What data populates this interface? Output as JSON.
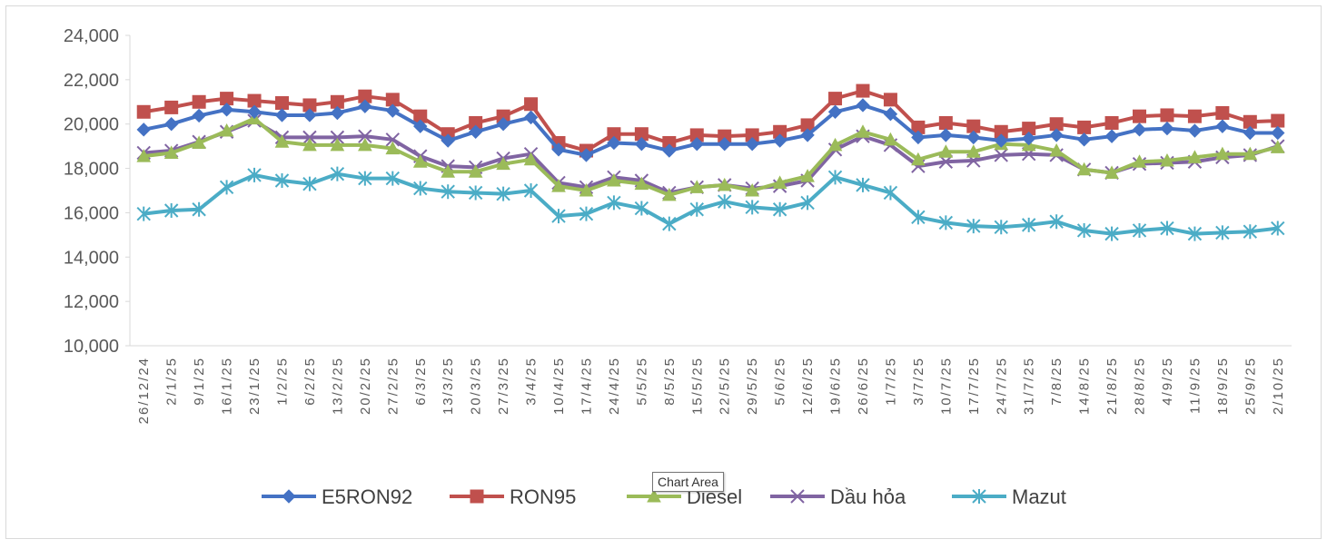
{
  "chart_data": {
    "type": "line",
    "title": "",
    "xlabel": "",
    "ylabel": "",
    "ylim": [
      10000,
      24000
    ],
    "yticks": [
      10000,
      12000,
      14000,
      16000,
      18000,
      20000,
      22000,
      24000
    ],
    "ytick_labels": [
      "10,000",
      "12,000",
      "14,000",
      "16,000",
      "18,000",
      "20,000",
      "22,000",
      "24,000"
    ],
    "grid": false,
    "legend_position": "bottom",
    "x": [
      "26/12/24",
      "2/1/25",
      "9/1/25",
      "16/1/25",
      "23/1/25",
      "1/2/25",
      "6/2/25",
      "13/2/25",
      "20/2/25",
      "27/2/25",
      "6/3/25",
      "13/3/25",
      "20/3/25",
      "27/3/25",
      "3/4/25",
      "10/4/25",
      "17/4/25",
      "24/4/25",
      "5/5/25",
      "8/5/25",
      "15/5/25",
      "22/5/25",
      "29/5/25",
      "5/6/25",
      "12/6/25",
      "19/6/25",
      "26/6/25",
      "1/7/25",
      "3/7/25",
      "10/7/25",
      "17/7/25",
      "24/7/25",
      "31/7/25",
      "7/8/25",
      "14/8/25",
      "21/8/25",
      "28/8/25",
      "4/9/25",
      "11/9/25",
      "18/9/25",
      "25/9/25",
      "2/10/25"
    ],
    "x_label_indices": [
      0,
      1,
      2,
      3,
      4,
      5,
      6,
      7,
      8,
      9,
      10,
      11,
      12,
      13,
      14,
      15,
      16,
      17,
      18,
      19,
      20,
      21,
      22,
      23,
      24,
      25,
      26,
      27,
      28,
      29,
      30,
      31,
      32,
      33,
      34,
      35,
      36,
      37,
      38,
      39,
      40,
      41
    ],
    "series": [
      {
        "name": "E5RON92",
        "color": "#4472c4",
        "marker": "diamond",
        "values": [
          19750,
          20000,
          20380,
          20650,
          20550,
          20400,
          20400,
          20500,
          20800,
          20600,
          19900,
          19250,
          19650,
          20000,
          20300,
          18850,
          18600,
          19150,
          19100,
          18800,
          19100,
          19100,
          19100,
          19250,
          19500,
          20550,
          20850,
          20450,
          19400,
          19500,
          19400,
          19250,
          19350,
          19500,
          19300,
          19450,
          19750,
          19800,
          19700,
          19900,
          19600,
          19600
        ]
      },
      {
        "name": "RON95",
        "color": "#c0504d",
        "marker": "square",
        "values": [
          20550,
          20750,
          21000,
          21150,
          21050,
          20950,
          20850,
          21000,
          21250,
          21100,
          20350,
          19550,
          20050,
          20350,
          20900,
          19150,
          18800,
          19550,
          19550,
          19150,
          19500,
          19450,
          19500,
          19650,
          19950,
          21150,
          21500,
          21100,
          19850,
          20050,
          19900,
          19650,
          19800,
          20000,
          19850,
          20050,
          20350,
          20400,
          20350,
          20500,
          20100,
          20150
        ]
      },
      {
        "name": "Diesel",
        "color": "#9bbb59",
        "marker": "triangle",
        "values": [
          18550,
          18700,
          19150,
          19700,
          20250,
          19200,
          19050,
          19050,
          19050,
          18900,
          18300,
          17850,
          17850,
          18200,
          18400,
          17200,
          17000,
          17450,
          17300,
          16800,
          17150,
          17250,
          17000,
          17350,
          17650,
          19050,
          19650,
          19300,
          18400,
          18750,
          18750,
          19100,
          19050,
          18800,
          17950,
          17800,
          18300,
          18350,
          18500,
          18650,
          18650,
          18950
        ]
      },
      {
        "name": "Dầu hỏa",
        "color": "#8064a2",
        "marker": "x",
        "values": [
          18700,
          18800,
          19200,
          19650,
          20150,
          19400,
          19400,
          19400,
          19450,
          19300,
          18550,
          18100,
          18050,
          18450,
          18650,
          17350,
          17150,
          17600,
          17450,
          16900,
          17150,
          17250,
          17100,
          17200,
          17450,
          18850,
          19450,
          19050,
          18100,
          18300,
          18350,
          18600,
          18650,
          18600,
          17950,
          17800,
          18200,
          18250,
          18300,
          18500,
          18600,
          19000
        ]
      },
      {
        "name": "Mazut",
        "color": "#4bacc6",
        "marker": "asterisk",
        "values": [
          15950,
          16100,
          16150,
          17150,
          17700,
          17450,
          17300,
          17750,
          17550,
          17550,
          17100,
          16950,
          16900,
          16850,
          17000,
          15850,
          15950,
          16450,
          16200,
          15500,
          16150,
          16500,
          16250,
          16150,
          16450,
          17600,
          17250,
          16900,
          15800,
          15550,
          15400,
          15350,
          15450,
          15600,
          15200,
          15050,
          15200,
          15300,
          15050,
          15100,
          15150,
          15300
        ]
      }
    ]
  },
  "tooltip": "Chart Area"
}
